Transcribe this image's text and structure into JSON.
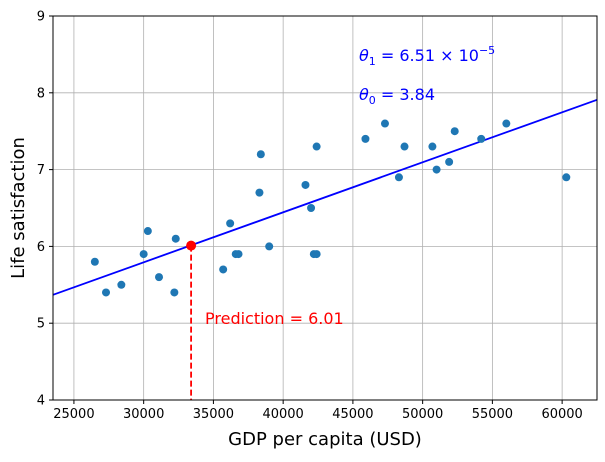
{
  "chart_data": {
    "type": "scatter",
    "xlabel": "GDP per capita (USD)",
    "ylabel": "Life satisfaction",
    "xlim": [
      23500,
      62500
    ],
    "ylim": [
      4,
      9
    ],
    "xticks": [
      25000,
      30000,
      35000,
      40000,
      45000,
      50000,
      55000,
      60000
    ],
    "yticks": [
      4,
      5,
      6,
      7,
      8,
      9
    ],
    "grid": true,
    "points": [
      {
        "x": 26500,
        "y": 5.8
      },
      {
        "x": 27300,
        "y": 5.4
      },
      {
        "x": 28400,
        "y": 5.5
      },
      {
        "x": 30000,
        "y": 5.9
      },
      {
        "x": 30300,
        "y": 6.2
      },
      {
        "x": 31100,
        "y": 5.6
      },
      {
        "x": 32200,
        "y": 5.4
      },
      {
        "x": 32300,
        "y": 6.1
      },
      {
        "x": 35700,
        "y": 5.7
      },
      {
        "x": 36200,
        "y": 6.3
      },
      {
        "x": 36600,
        "y": 5.9
      },
      {
        "x": 36800,
        "y": 5.9
      },
      {
        "x": 38300,
        "y": 6.7
      },
      {
        "x": 38400,
        "y": 7.2
      },
      {
        "x": 39000,
        "y": 6.0
      },
      {
        "x": 41600,
        "y": 6.8
      },
      {
        "x": 42000,
        "y": 6.5
      },
      {
        "x": 42200,
        "y": 5.9
      },
      {
        "x": 42400,
        "y": 5.9
      },
      {
        "x": 42400,
        "y": 7.3
      },
      {
        "x": 45900,
        "y": 7.4
      },
      {
        "x": 47300,
        "y": 7.6
      },
      {
        "x": 48300,
        "y": 6.9
      },
      {
        "x": 48700,
        "y": 7.3
      },
      {
        "x": 50700,
        "y": 7.3
      },
      {
        "x": 51000,
        "y": 7.0
      },
      {
        "x": 51900,
        "y": 7.1
      },
      {
        "x": 52300,
        "y": 7.5
      },
      {
        "x": 54200,
        "y": 7.4
      },
      {
        "x": 56000,
        "y": 7.6
      },
      {
        "x": 60300,
        "y": 6.9
      }
    ],
    "model_line": {
      "theta0": 3.84,
      "theta1": 6.51e-05,
      "color": "#0000ff"
    },
    "prediction": {
      "x": 33400,
      "y": 6.01,
      "color": "#ff0000"
    },
    "annotations": {
      "theta1_prefix": "θ",
      "theta1_sub": "1",
      "theta1_value": " = 6.51 × 10",
      "theta1_exp": "−5",
      "theta0_prefix": "θ",
      "theta0_sub": "0",
      "theta0_value": " = 3.84",
      "prediction_label": "Prediction = 6.01"
    },
    "point_color": "#1f77b4"
  }
}
